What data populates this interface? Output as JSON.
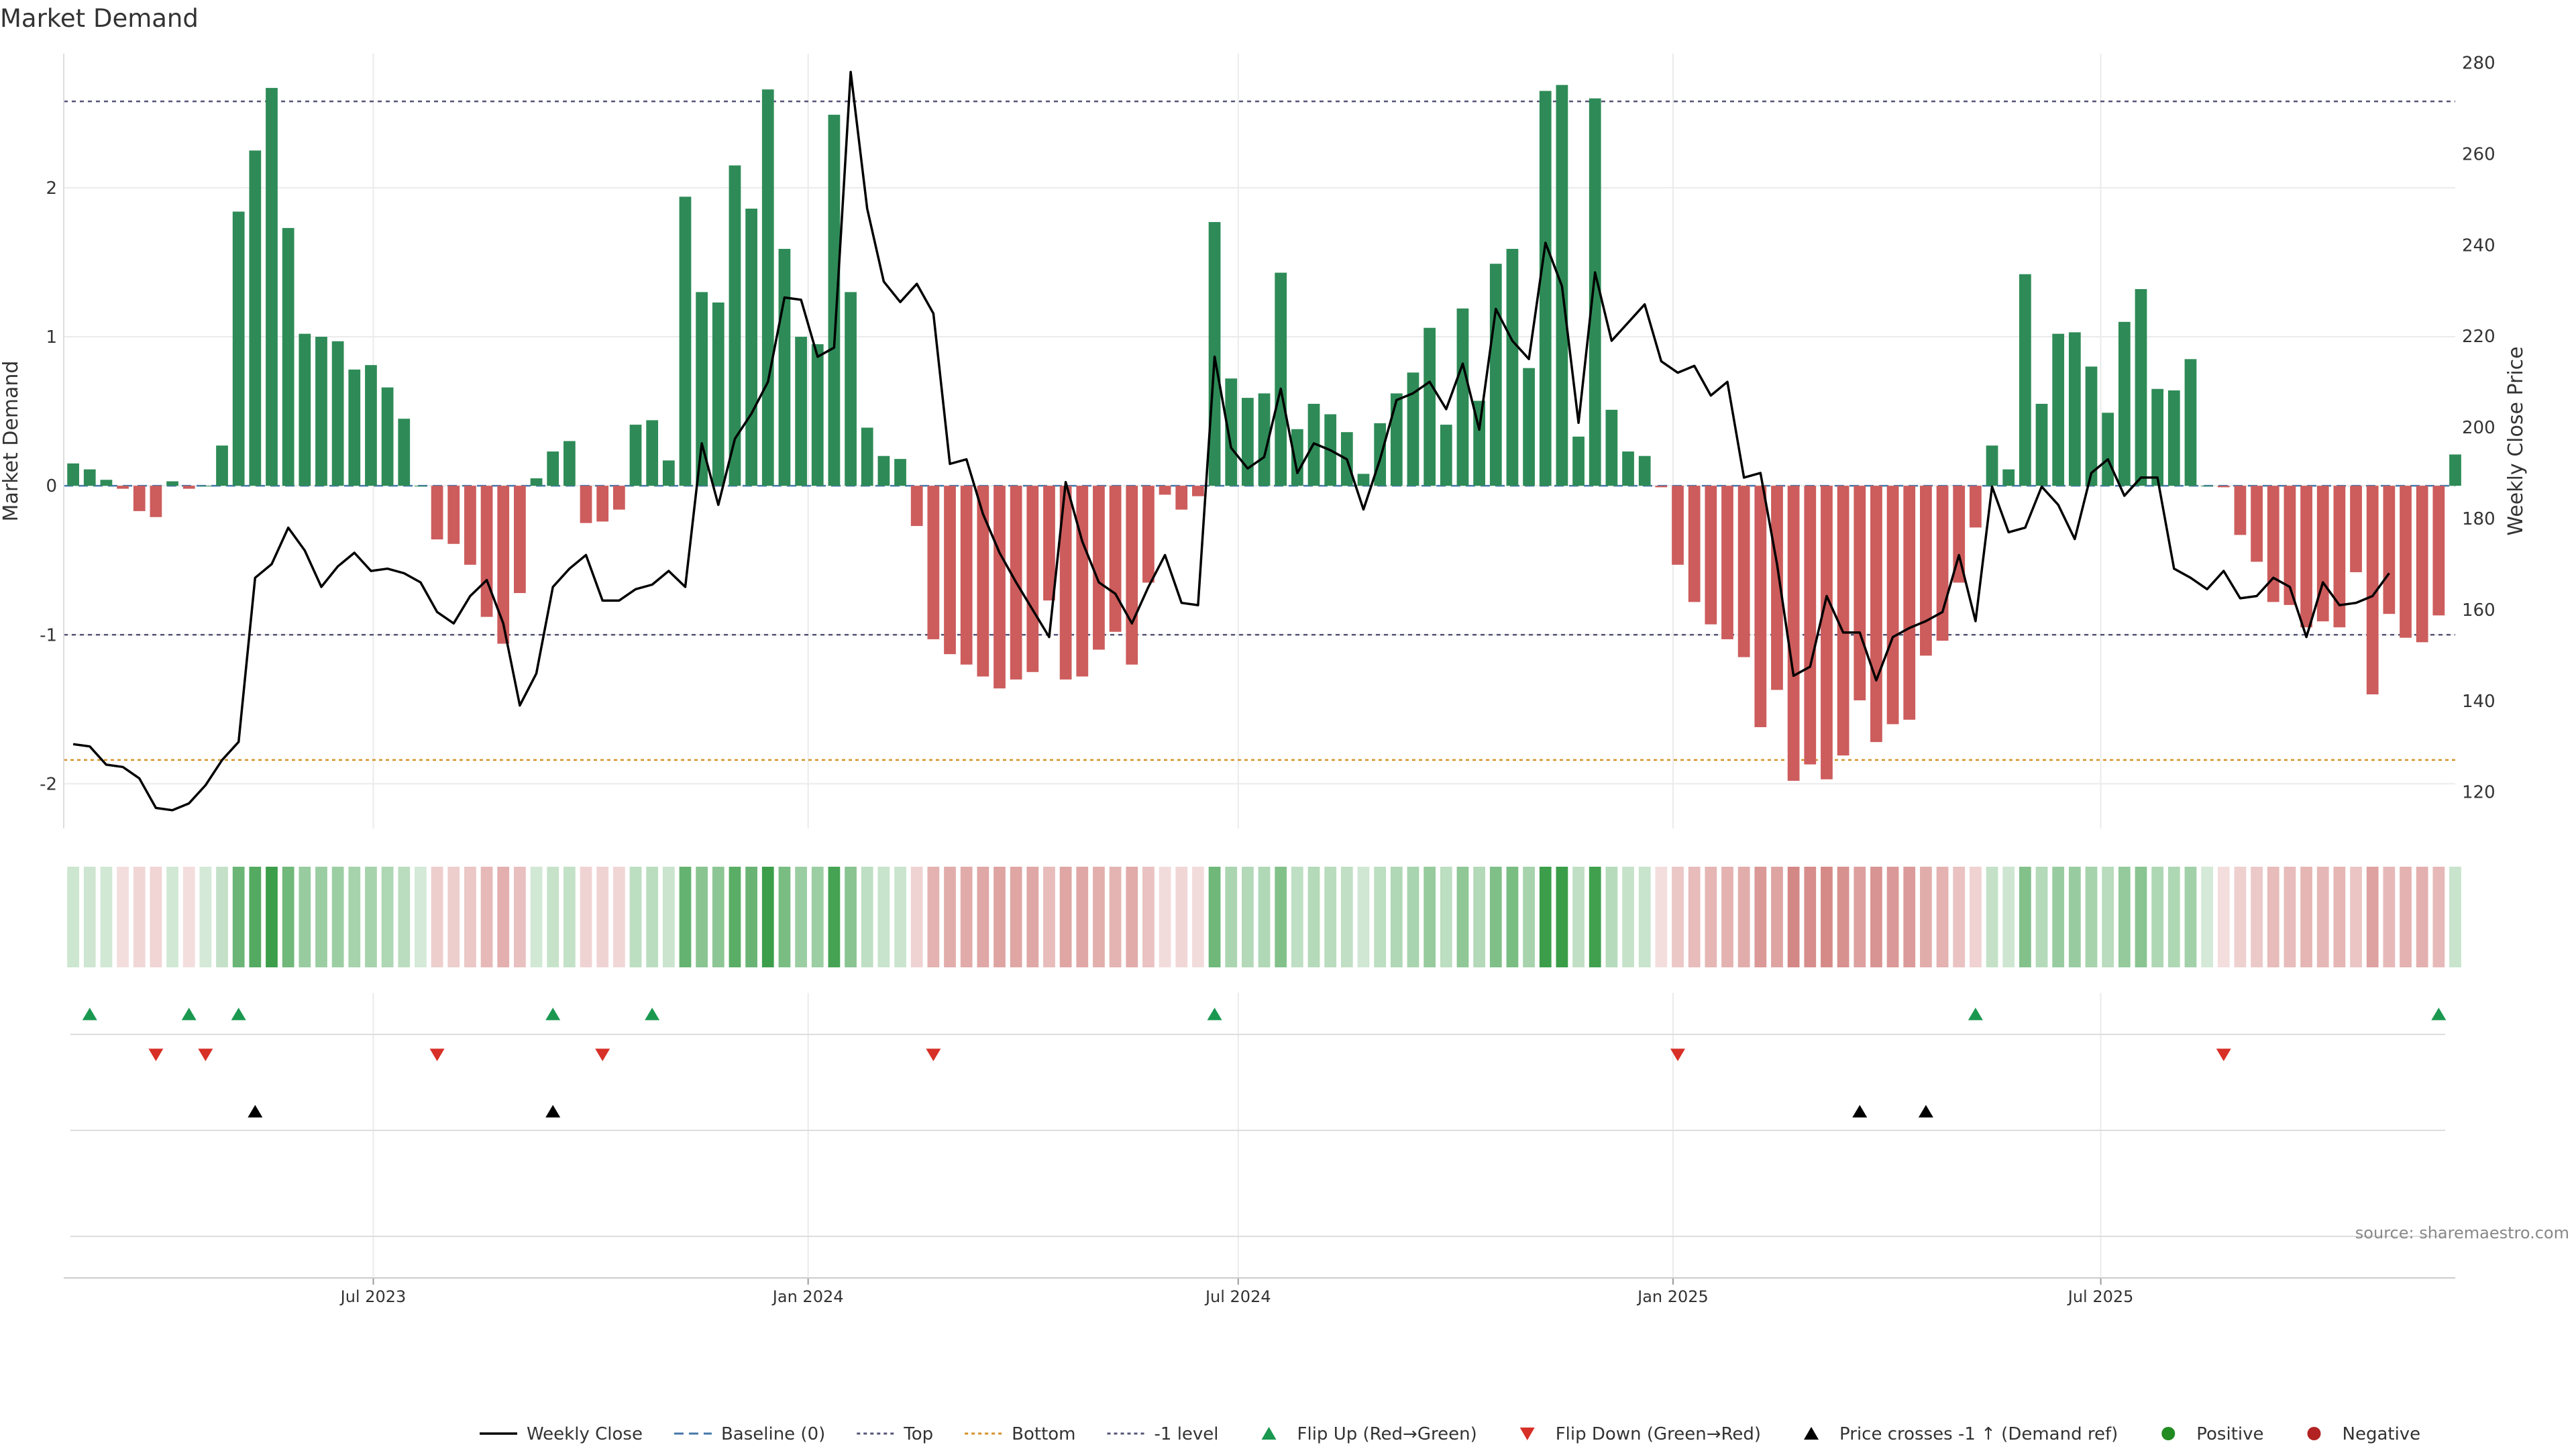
{
  "page": {
    "title": "Market Demand",
    "source_note": "source: sharemaestro.com"
  },
  "colors": {
    "positive_bar": "#2e8b57",
    "negative_bar": "#cd5c5c",
    "price_line": "#000000",
    "top_line": "#555577",
    "bottom_line": "#d4922a",
    "minus_one_line": "#555577",
    "baseline": "#4477aa",
    "flip_up": "#1a9850",
    "flip_down": "#d73027",
    "cross_marker": "#000000",
    "legend_positive": "#228b22",
    "legend_negative": "#b22222"
  },
  "chart_data": [
    {
      "type": "bar",
      "title": "Market Demand",
      "ylabel": "Market Demand",
      "ylim": [
        -2.3,
        2.9
      ],
      "yticks": [
        -2,
        -1,
        0,
        1,
        2
      ],
      "reference_lines": {
        "top": 2.58,
        "bottom": -1.84,
        "minus_one": -1,
        "baseline": 0
      },
      "x_start": "2023-02-24",
      "x_interval_days": 7,
      "xlim": [
        "2023-02-20",
        "2025-11-28"
      ],
      "x_tick_labels": [
        {
          "date": "2023-07-01",
          "label": "Jul 2023"
        },
        {
          "date": "2024-01-01",
          "label": "Jan 2024"
        },
        {
          "date": "2024-07-01",
          "label": "Jul 2024"
        },
        {
          "date": "2025-01-01",
          "label": "Jan 2025"
        },
        {
          "date": "2025-07-01",
          "label": "Jul 2025"
        }
      ],
      "series": [
        {
          "name": "Market Demand",
          "values": [
            0.15,
            0.11,
            0.04,
            -0.02,
            -0.17,
            -0.21,
            0.03,
            -0.02,
            0.0,
            0.27,
            1.84,
            2.25,
            2.67,
            1.73,
            1.02,
            1.0,
            0.97,
            0.78,
            0.81,
            0.66,
            0.45,
            0.0,
            -0.36,
            -0.39,
            -0.53,
            -0.88,
            -1.06,
            -0.72,
            0.05,
            0.23,
            0.3,
            -0.25,
            -0.24,
            -0.16,
            0.41,
            0.44,
            0.17,
            1.94,
            1.3,
            1.23,
            2.15,
            1.86,
            2.66,
            1.59,
            1.0,
            0.95,
            2.49,
            1.3,
            0.39,
            0.2,
            0.18,
            -0.27,
            -1.03,
            -1.13,
            -1.2,
            -1.28,
            -1.36,
            -1.3,
            -1.25,
            -0.77,
            -1.3,
            -1.28,
            -1.1,
            -0.98,
            -1.2,
            -0.65,
            -0.06,
            -0.16,
            -0.07,
            1.77,
            0.72,
            0.59,
            0.62,
            1.43,
            0.38,
            0.55,
            0.48,
            0.36,
            0.08,
            0.42,
            0.62,
            0.76,
            1.06,
            0.41,
            1.19,
            0.57,
            1.49,
            1.59,
            0.79,
            2.65,
            2.69,
            0.33,
            2.6,
            0.51,
            0.23,
            0.2,
            -0.01,
            -0.53,
            -0.78,
            -0.93,
            -1.03,
            -1.15,
            -1.62,
            -1.37,
            -1.98,
            -1.87,
            -1.97,
            -1.81,
            -1.44,
            -1.72,
            -1.6,
            -1.57,
            -1.14,
            -1.04,
            -0.65,
            -0.28,
            0.27,
            0.11,
            1.42,
            0.55,
            1.02,
            1.03,
            0.8,
            0.49,
            1.1,
            1.32,
            0.65,
            0.64,
            0.85,
            0.0,
            -0.01,
            -0.33,
            -0.51,
            -0.78,
            -0.8,
            -0.95,
            -0.91,
            -0.95,
            -0.58,
            -1.4,
            -0.86,
            -1.02,
            -1.05,
            -0.87,
            0.21
          ]
        },
        {
          "name": "Weekly Close",
          "axis": "right",
          "ylabel": "Weekly Close Price",
          "ylim": [
            112,
            282
          ],
          "yticks": [
            120,
            140,
            160,
            180,
            200,
            220,
            240,
            260,
            280
          ],
          "values": [
            130.5,
            130,
            126,
            125.5,
            123,
            116.5,
            116,
            117.5,
            121.5,
            127,
            131,
            167,
            170,
            178,
            173,
            165,
            169.5,
            172.5,
            168.5,
            169,
            168,
            166,
            159.5,
            157,
            163,
            166.5,
            157,
            139,
            146,
            165,
            169,
            172,
            162,
            162,
            164.5,
            165.5,
            168.5,
            165,
            196.5,
            183,
            197.5,
            203,
            210,
            228.5,
            228,
            215.5,
            217.5,
            278,
            248,
            232,
            227.5,
            231.5,
            225,
            192,
            193,
            181,
            172.5,
            166,
            160,
            154,
            188,
            175,
            166,
            163.5,
            157,
            165,
            172,
            161.5,
            161,
            215.5,
            195.5,
            191,
            193.5,
            208.5,
            190,
            196.5,
            195,
            193,
            182,
            193,
            206,
            207.5,
            210,
            204,
            214,
            199.5,
            226,
            219,
            215,
            240.5,
            231,
            201,
            234,
            219,
            223,
            227,
            214.5,
            212,
            213.5,
            207,
            210,
            189,
            190,
            170,
            145.5,
            147.5,
            163,
            155,
            155,
            144.5,
            154,
            156,
            157.5,
            159.5,
            172,
            157.5,
            187,
            177,
            178,
            187,
            183,
            175.5,
            190,
            193,
            185,
            189,
            189,
            169,
            167,
            164.5,
            168.5,
            162.5,
            163,
            167,
            165,
            154,
            166,
            161,
            161.5,
            163,
            168
          ]
        }
      ],
      "heat_strip": {
        "positive_color": "#3a9d48",
        "negative_color": "#c0504d"
      },
      "event_rows": [
        {
          "name": "Flip Up (Red→Green)",
          "indices": [
            1,
            7,
            10,
            29,
            35,
            69,
            115,
            143
          ]
        },
        {
          "name": "Flip Down (Green→Red)",
          "indices": [
            5,
            8,
            22,
            32,
            52,
            97,
            130
          ]
        },
        {
          "name": "Price crosses -1 ↑ (Demand ref)",
          "indices": [
            11,
            29,
            108,
            112
          ]
        },
        {
          "name": "(empty row)",
          "indices": []
        }
      ]
    }
  ],
  "legend": {
    "items": [
      {
        "label": "Weekly Close"
      },
      {
        "label": "Baseline (0)"
      },
      {
        "label": "Top"
      },
      {
        "label": "Bottom"
      },
      {
        "label": "-1 level"
      },
      {
        "label": "Flip Up (Red→Green)"
      },
      {
        "label": "Flip Down (Green→Red)"
      },
      {
        "label": "Price crosses -1 ↑ (Demand ref)"
      },
      {
        "label": "Positive"
      },
      {
        "label": "Negative"
      }
    ]
  }
}
